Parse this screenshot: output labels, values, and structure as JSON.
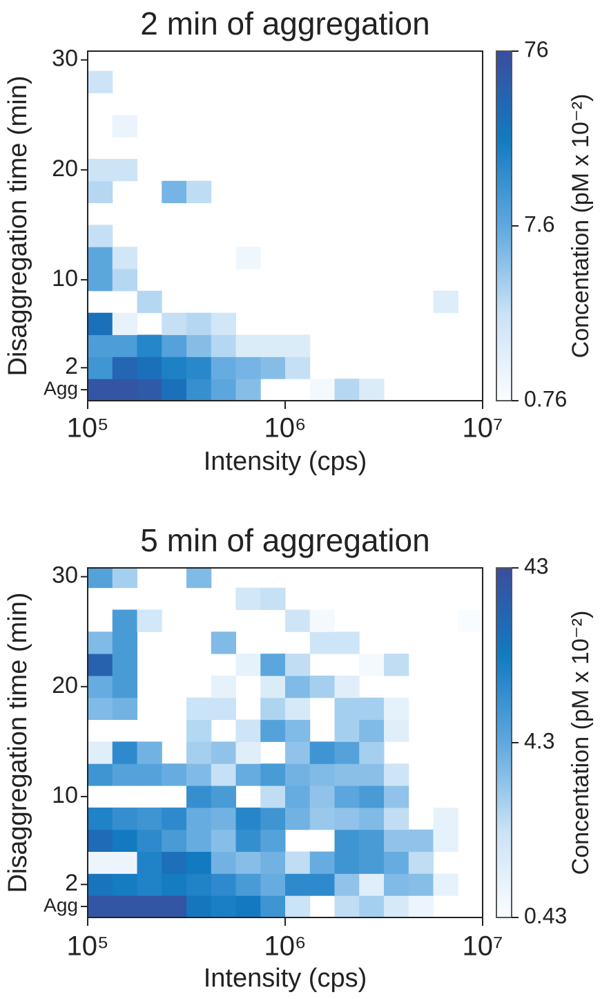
{
  "chart_data": [
    {
      "type": "heatmap",
      "title": "2 min of aggregation",
      "xlabel": "Intensity (cps)",
      "ylabel": "Disaggregation time (min)",
      "colorbar_label": "Concentation (pM x 10⁻²)",
      "xscale": "log",
      "xlim": [
        100000,
        10000000
      ],
      "xticks": [
        {
          "value": 100000,
          "label": "10⁵"
        },
        {
          "value": 1000000,
          "label": "10⁶"
        },
        {
          "value": 10000000,
          "label": "10⁷"
        }
      ],
      "ylim": [
        -1,
        30.8
      ],
      "yticks": [
        30,
        20,
        10,
        2,
        {
          "value": 0,
          "label": "Agg"
        }
      ],
      "x_bins": [
        100000,
        133352,
        177828,
        237137,
        316228,
        421697,
        562341,
        749894,
        1000000,
        1333521,
        1778279,
        2371374,
        3162278,
        4216965,
        5623413,
        7498942,
        10000000
      ],
      "y_bins": [
        -1,
        1,
        3,
        5,
        7,
        9,
        11,
        13,
        15,
        17,
        19,
        21,
        23,
        25,
        27,
        29,
        31
      ],
      "clim": [
        0.76,
        76
      ],
      "cticks": [
        0.76,
        7.6,
        76
      ],
      "cscale": "log",
      "colormap": [
        "#fbfdff",
        "#c9e2f6",
        "#5fa8df",
        "#127ac1",
        "#3a4d9e"
      ],
      "z": [
        [
          62,
          62,
          55,
          30,
          14,
          8,
          5,
          null,
          null,
          0.9,
          3,
          1.6,
          null,
          null,
          null,
          null
        ],
        [
          12,
          40,
          30,
          20,
          17,
          7,
          6,
          5,
          2.5,
          null,
          null,
          null,
          null,
          null,
          null,
          null
        ],
        [
          10,
          10,
          18,
          9,
          5,
          3,
          1.6,
          1.6,
          1.6,
          null,
          null,
          null,
          null,
          null,
          null,
          null
        ],
        [
          30,
          1.2,
          null,
          2.5,
          3,
          2,
          null,
          null,
          null,
          null,
          null,
          null,
          null,
          null,
          null,
          null
        ],
        [
          null,
          null,
          3,
          null,
          null,
          null,
          null,
          null,
          null,
          null,
          null,
          null,
          null,
          null,
          1.5,
          null
        ],
        [
          8,
          3,
          null,
          null,
          null,
          null,
          null,
          null,
          null,
          null,
          null,
          null,
          null,
          null,
          null,
          null
        ],
        [
          8,
          2,
          null,
          null,
          null,
          null,
          1,
          null,
          null,
          null,
          null,
          null,
          null,
          null,
          null,
          null
        ],
        [
          2.5,
          null,
          null,
          null,
          null,
          null,
          null,
          null,
          null,
          null,
          null,
          null,
          null,
          null,
          null,
          null
        ],
        [
          null,
          null,
          null,
          null,
          null,
          null,
          null,
          null,
          null,
          null,
          null,
          null,
          null,
          null,
          null,
          null
        ],
        [
          3,
          null,
          null,
          6,
          2.7,
          null,
          null,
          null,
          null,
          null,
          null,
          null,
          null,
          null,
          null,
          null
        ],
        [
          2.2,
          2.2,
          null,
          null,
          null,
          null,
          null,
          null,
          null,
          null,
          null,
          null,
          null,
          null,
          null,
          null
        ],
        [
          null,
          null,
          null,
          null,
          null,
          null,
          null,
          null,
          null,
          null,
          null,
          null,
          null,
          null,
          null,
          null
        ],
        [
          null,
          1.1,
          null,
          null,
          null,
          null,
          null,
          null,
          null,
          null,
          null,
          null,
          null,
          null,
          null,
          null
        ],
        [
          null,
          null,
          null,
          null,
          null,
          null,
          null,
          null,
          null,
          null,
          null,
          null,
          null,
          null,
          null,
          null
        ],
        [
          2.2,
          null,
          null,
          null,
          null,
          null,
          null,
          null,
          null,
          null,
          null,
          null,
          null,
          null,
          null,
          null
        ],
        [
          null,
          null,
          null,
          null,
          null,
          null,
          null,
          null,
          null,
          null,
          null,
          null,
          null,
          null,
          null,
          null
        ]
      ]
    },
    {
      "type": "heatmap",
      "title": "5 min of aggregation",
      "xlabel": "Intensity (cps)",
      "ylabel": "Disaggregation time (min)",
      "colorbar_label": "Concentation (pM x 10⁻²)",
      "xscale": "log",
      "xlim": [
        100000,
        10000000
      ],
      "xticks": [
        {
          "value": 100000,
          "label": "10⁵"
        },
        {
          "value": 1000000,
          "label": "10⁶"
        },
        {
          "value": 10000000,
          "label": "10⁷"
        }
      ],
      "ylim": [
        -1,
        30.8
      ],
      "yticks": [
        30,
        20,
        10,
        2,
        {
          "value": 0,
          "label": "Agg"
        }
      ],
      "x_bins": [
        100000,
        133352,
        177828,
        237137,
        316228,
        421697,
        562341,
        749894,
        1000000,
        1333521,
        1778279,
        2371374,
        3162278,
        4216965,
        5623413,
        7498942,
        10000000
      ],
      "y_bins": [
        -1,
        1,
        3,
        5,
        7,
        9,
        11,
        13,
        15,
        17,
        19,
        21,
        23,
        25,
        27,
        29,
        31
      ],
      "clim": [
        0.43,
        43
      ],
      "cticks": [
        0.43,
        4.3,
        43
      ],
      "cscale": "log",
      "colormap": [
        "#fbfdff",
        "#c9e2f6",
        "#5fa8df",
        "#127ac1",
        "#3a4d9e"
      ],
      "z": [
        [
          35,
          35,
          35,
          35,
          15,
          12,
          14,
          7,
          1.3,
          null,
          1.5,
          2,
          1,
          0.6,
          null,
          null
        ],
        [
          16,
          13,
          11,
          13,
          11,
          9,
          6,
          4,
          9,
          9,
          2.5,
          0.8,
          3,
          2.8,
          0.7,
          null
        ],
        [
          0.6,
          0.6,
          11,
          18,
          14,
          3.5,
          2.8,
          3.5,
          1.5,
          4,
          7,
          6,
          4,
          1.5,
          null,
          null
        ],
        [
          20,
          14,
          9,
          6,
          4,
          2.8,
          8,
          5,
          null,
          null,
          7,
          6,
          2.5,
          2.5,
          0.7,
          null
        ],
        [
          11,
          8,
          7,
          9,
          4,
          3.5,
          10,
          7,
          3.5,
          2.3,
          2.5,
          3,
          1.5,
          null,
          0.7,
          null
        ],
        [
          null,
          null,
          null,
          null,
          8,
          6,
          null,
          1.5,
          4,
          2.5,
          4.5,
          6,
          2.5,
          null,
          null,
          null
        ],
        [
          7,
          5,
          5,
          4,
          3,
          1.4,
          4,
          6,
          3.5,
          3,
          2.7,
          2.7,
          1.2,
          null,
          null,
          null
        ],
        [
          0.8,
          9,
          3.5,
          null,
          2,
          2.5,
          0.8,
          null,
          2.5,
          7,
          5,
          2,
          null,
          null,
          null,
          null
        ],
        [
          null,
          null,
          null,
          null,
          1.7,
          null,
          1.2,
          5,
          3,
          null,
          2,
          3,
          0.8,
          null,
          null,
          null
        ],
        [
          3,
          3.5,
          null,
          null,
          1.3,
          1.3,
          null,
          1.8,
          1,
          null,
          2,
          2,
          0.7,
          null,
          null,
          null
        ],
        [
          4,
          6,
          null,
          null,
          null,
          0.7,
          null,
          0.9,
          3,
          2,
          0.8,
          null,
          null,
          null,
          null,
          null
        ],
        [
          25,
          6,
          null,
          null,
          null,
          null,
          0.7,
          4.5,
          1.5,
          null,
          null,
          0.5,
          1.5,
          null,
          null,
          null
        ],
        [
          3,
          6,
          null,
          null,
          null,
          3,
          null,
          null,
          null,
          1.2,
          1.2,
          null,
          null,
          null,
          null,
          null
        ],
        [
          null,
          6,
          1.1,
          null,
          null,
          null,
          null,
          null,
          1.2,
          0.5,
          null,
          null,
          null,
          null,
          null,
          0.45
        ],
        [
          null,
          null,
          null,
          null,
          null,
          null,
          1.1,
          1.4,
          null,
          null,
          null,
          null,
          null,
          null,
          null,
          null
        ],
        [
          5,
          2,
          null,
          null,
          3,
          null,
          null,
          null,
          null,
          null,
          null,
          null,
          null,
          null,
          null,
          null
        ]
      ]
    }
  ]
}
